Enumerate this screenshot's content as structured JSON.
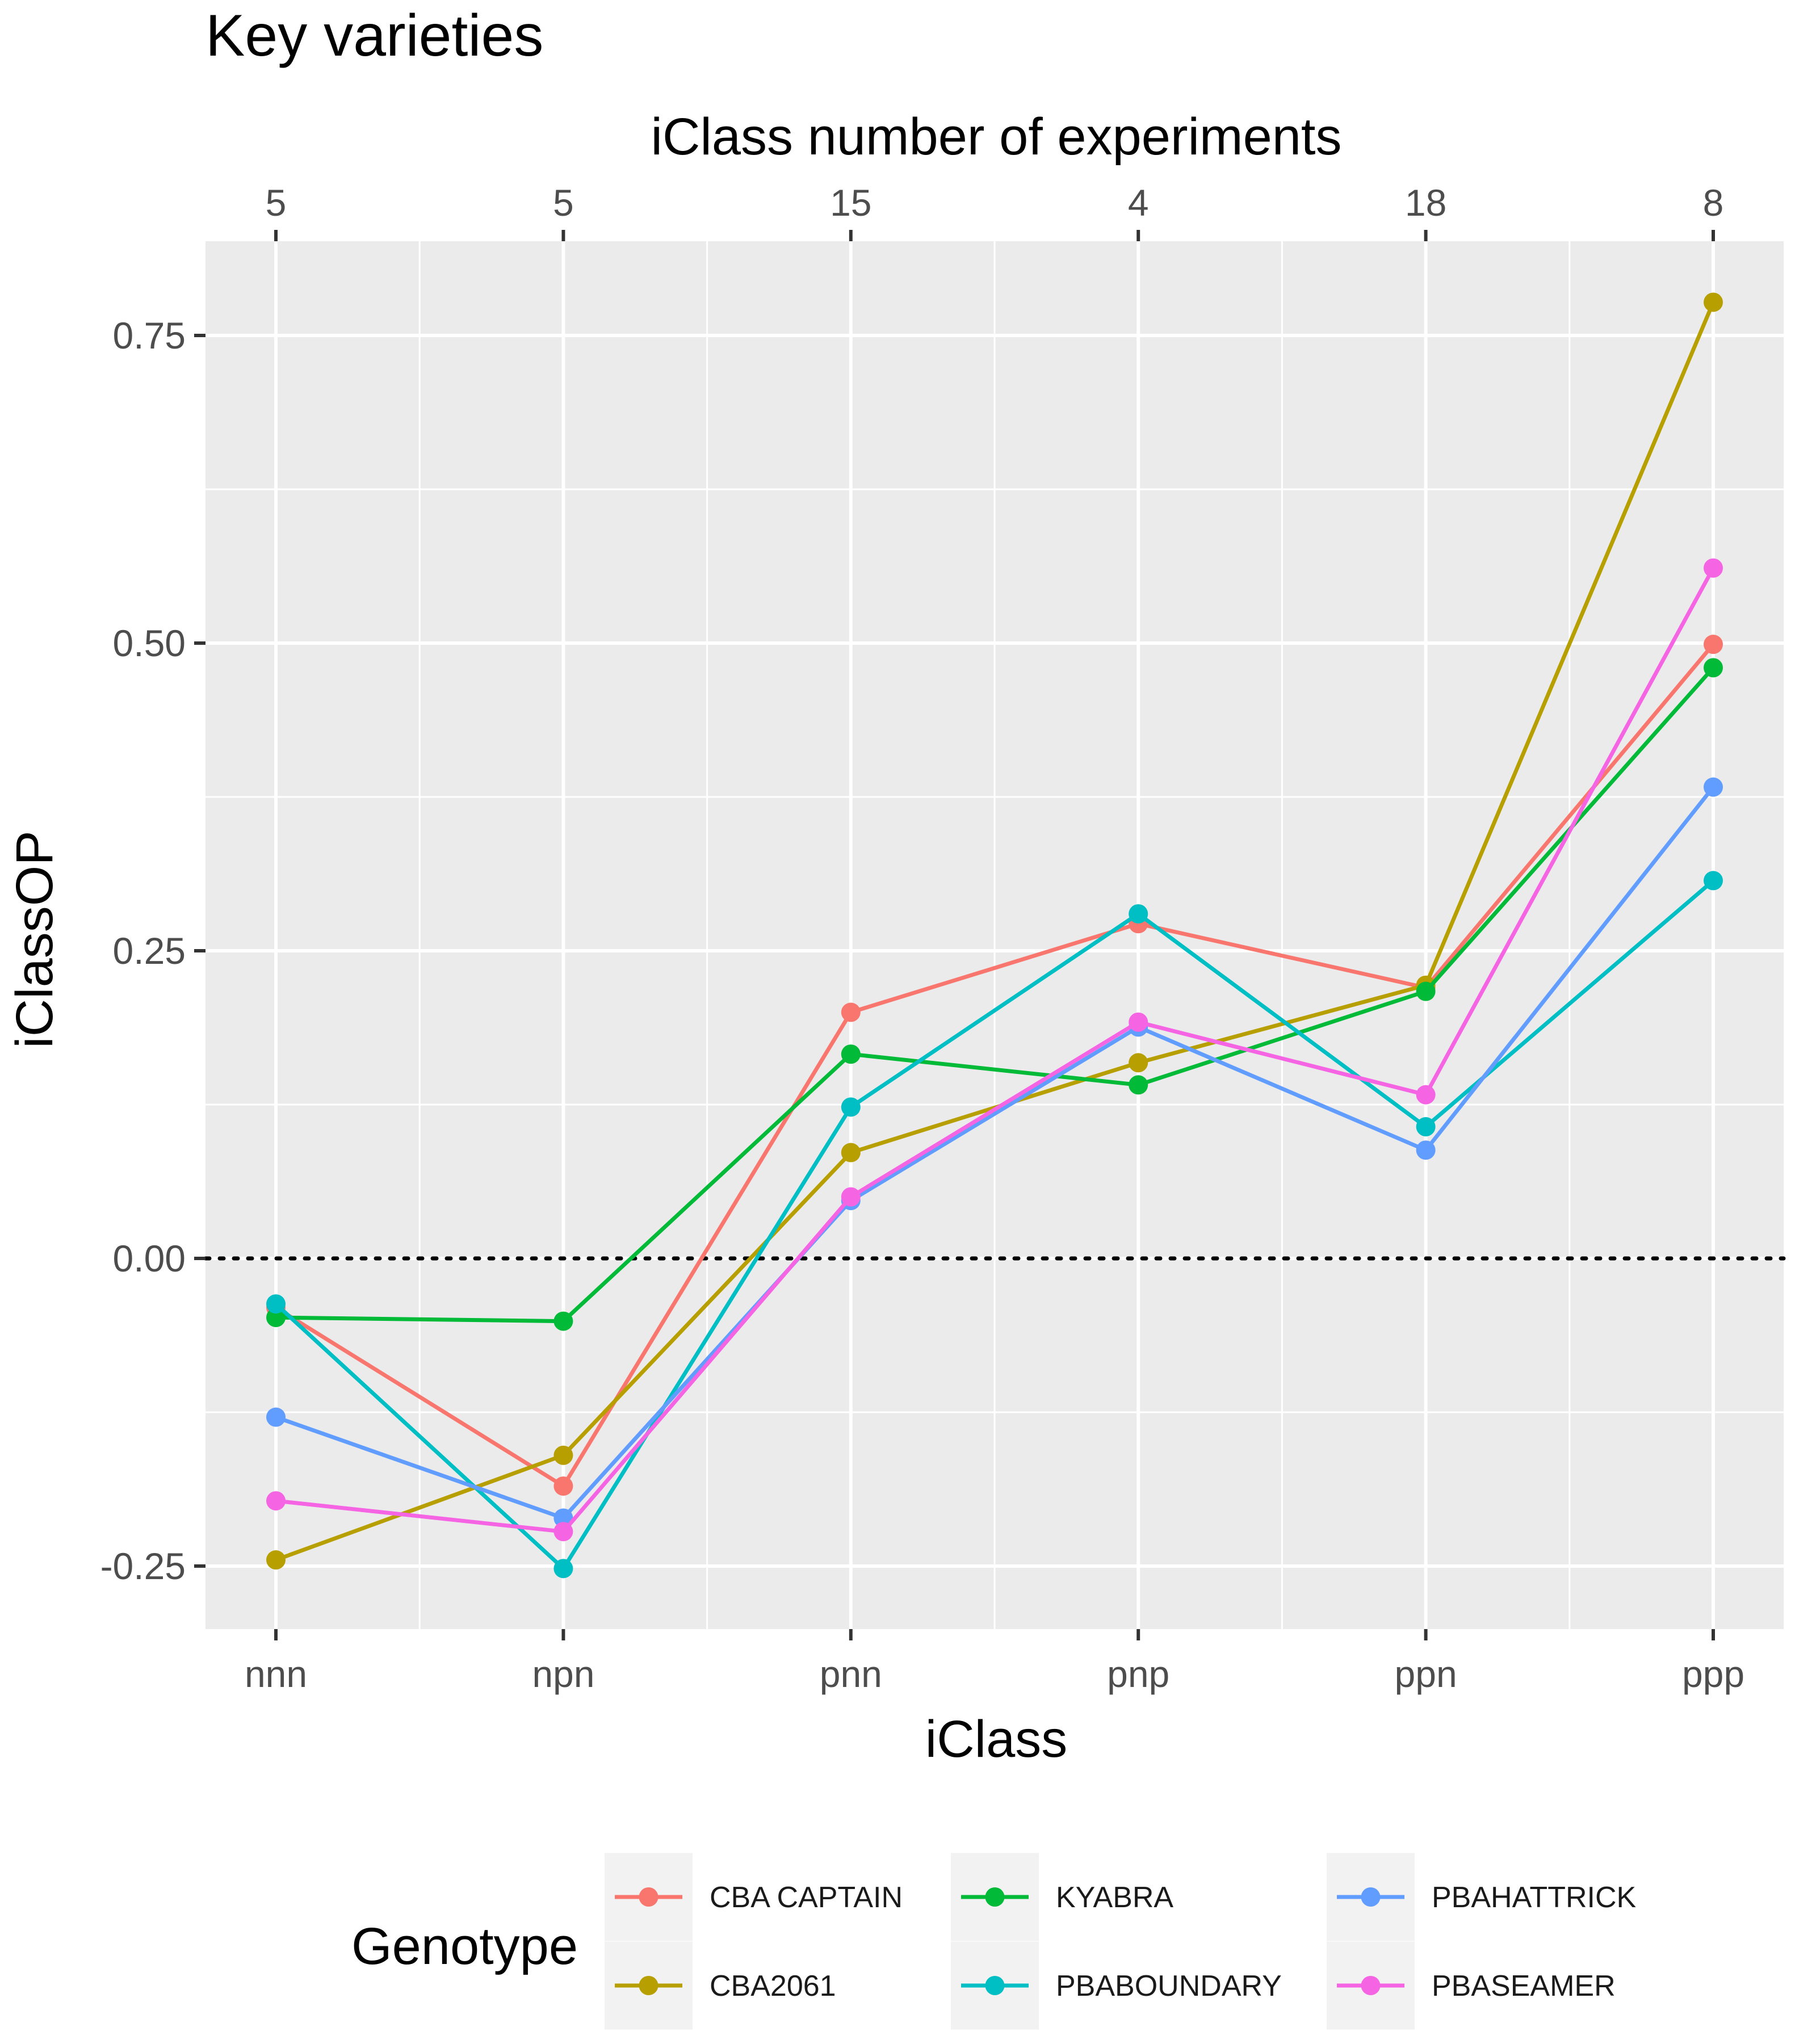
{
  "chart_data": {
    "type": "line",
    "title": "Key varieties",
    "top_axis_title": "iClass number of experiments",
    "xlabel": "iClass",
    "ylabel": "iClassOP",
    "categories": [
      "nnn",
      "npn",
      "pnn",
      "pnp",
      "ppn",
      "ppp"
    ],
    "top_labels": [
      "5",
      "5",
      "15",
      "4",
      "18",
      "8"
    ],
    "ylim": [
      -0.3,
      0.83
    ],
    "yticks": [
      -0.25,
      0.0,
      0.25,
      0.5,
      0.75
    ],
    "ytick_labels": [
      "-0.25",
      "0.00",
      "0.25",
      "0.50",
      "0.75"
    ],
    "reference_line": {
      "y": 0,
      "style": "dotted"
    },
    "legend": {
      "title": "Genotype",
      "position": "bottom"
    },
    "series": [
      {
        "name": "CBA CAPTAIN",
        "color": "#F8766D",
        "values": [
          -0.04,
          -0.185,
          0.2,
          0.272,
          0.22,
          0.499
        ]
      },
      {
        "name": "CBA2061",
        "color": "#B79F00",
        "values": [
          -0.245,
          -0.16,
          0.086,
          0.159,
          0.222,
          0.777
        ]
      },
      {
        "name": "KYABRA",
        "color": "#00BA38",
        "values": [
          -0.048,
          -0.051,
          0.166,
          0.141,
          0.217,
          0.48
        ]
      },
      {
        "name": "PBABOUNDARY",
        "color": "#00BFC4",
        "values": [
          -0.037,
          -0.252,
          0.123,
          0.28,
          0.107,
          0.307
        ]
      },
      {
        "name": "PBAHATTRICK",
        "color": "#619CFF",
        "values": [
          -0.129,
          -0.211,
          0.047,
          0.188,
          0.088,
          0.383
        ]
      },
      {
        "name": "PBASEAMER",
        "color": "#F564E3",
        "values": [
          -0.197,
          -0.222,
          0.05,
          0.192,
          0.133,
          0.561
        ]
      }
    ]
  }
}
